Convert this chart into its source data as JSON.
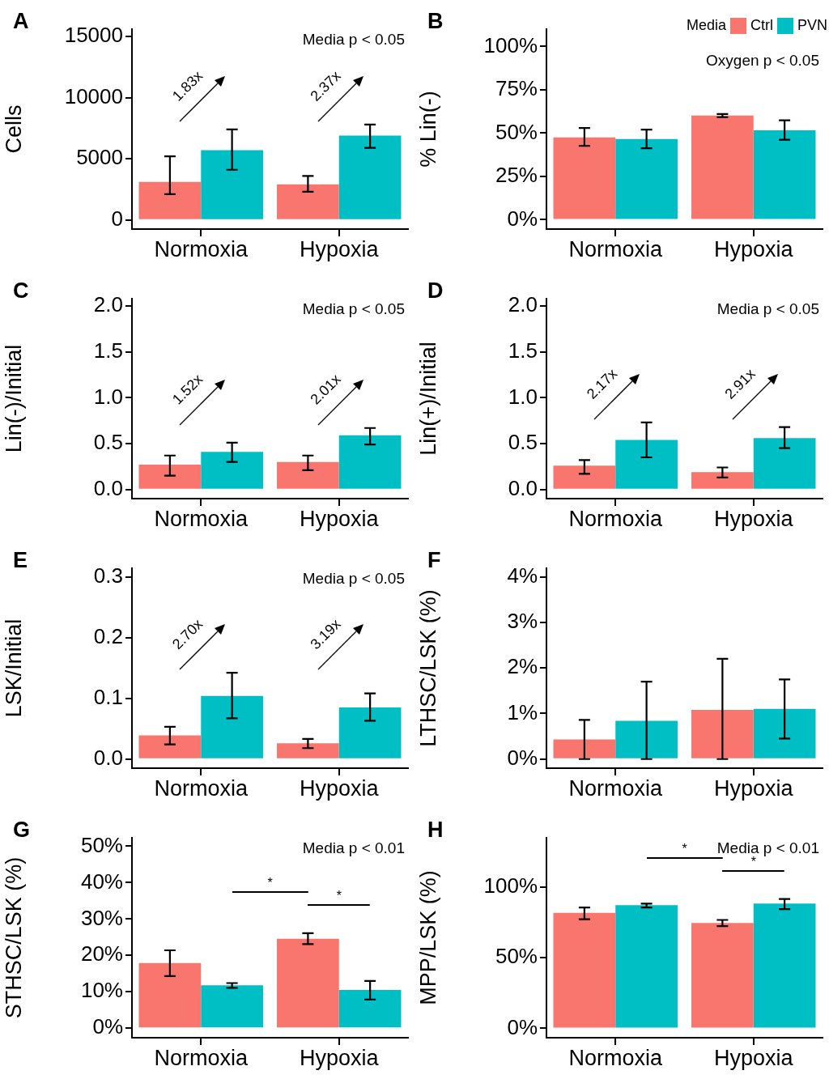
{
  "chart_data": [
    {
      "type": "bar",
      "title": "A",
      "ylabel": "Cells",
      "categories": [
        "Normoxia",
        "Hypoxia"
      ],
      "series": [
        {
          "color": "#f8766d",
          "values": [
            3100,
            2900
          ],
          "errors": [
            [
              2100,
              5200
            ],
            [
              2300,
              3600
            ]
          ]
        },
        {
          "color": "#00bfc4",
          "values": [
            5700,
            6900
          ],
          "errors": [
            [
              4100,
              7400
            ],
            [
              5900,
              7800
            ]
          ]
        }
      ],
      "ylim": [
        -750,
        15600
      ],
      "yticks": [
        0,
        5000,
        10000,
        15000
      ],
      "annotations": [
        "Media p < 0.05",
        "1.83x",
        "2.37x"
      ]
    },
    {
      "type": "bar",
      "title": "B",
      "ylabel": "% Lin(-)",
      "categories": [
        "Normoxia",
        "Hypoxia"
      ],
      "legend": "top right",
      "legend_title": "Media",
      "series": [
        {
          "name": "Ctrl",
          "color": "#f8766d",
          "values": [
            47.5,
            60.1
          ],
          "errors": [
            [
              42.6,
              52.9
            ],
            [
              59.2,
              61
            ]
          ]
        },
        {
          "name": "PVN",
          "color": "#00bfc4",
          "values": [
            46.6,
            51.6
          ],
          "errors": [
            [
              41.3,
              52
            ],
            [
              46.2,
              57.4
            ]
          ]
        }
      ],
      "ylim": [
        -5.4,
        110
      ],
      "yticks": [
        {
          "value": 0,
          "label": "0%"
        },
        {
          "value": 25,
          "label": "25%"
        },
        {
          "value": 50,
          "label": "50%"
        },
        {
          "value": 75,
          "label": "75%"
        },
        {
          "value": 100,
          "label": "100%"
        }
      ],
      "annotations": [
        "Oxygen p < 0.05"
      ]
    },
    {
      "type": "bar",
      "title": "C",
      "ylabel": "Lin(-)/Initial",
      "categories": [
        "Normoxia",
        "Hypoxia"
      ],
      "series": [
        {
          "color": "#f8766d",
          "values": [
            0.27,
            0.3
          ],
          "errors": [
            [
              0.15,
              0.37
            ],
            [
              0.21,
              0.37
            ]
          ]
        },
        {
          "color": "#00bfc4",
          "values": [
            0.41,
            0.59
          ],
          "errors": [
            [
              0.3,
              0.51
            ],
            [
              0.49,
              0.67
            ]
          ]
        }
      ],
      "ylim": [
        -0.1,
        2.08
      ],
      "yticks": [
        {
          "value": 0,
          "label": "0.0"
        },
        {
          "value": 0.5,
          "label": "0.5"
        },
        {
          "value": 1,
          "label": "1.0"
        },
        {
          "value": 1.5,
          "label": "1.5"
        },
        {
          "value": 2,
          "label": "2.0"
        }
      ],
      "annotations": [
        "Media p < 0.05",
        "1.52x",
        "2.01x"
      ]
    },
    {
      "type": "bar",
      "title": "D",
      "ylabel": "Lin(+)/Initial",
      "categories": [
        "Normoxia",
        "Hypoxia"
      ],
      "series": [
        {
          "color": "#f8766d",
          "values": [
            0.26,
            0.19
          ],
          "errors": [
            [
              0.17,
              0.32
            ],
            [
              0.13,
              0.24
            ]
          ]
        },
        {
          "color": "#00bfc4",
          "values": [
            0.54,
            0.56
          ],
          "errors": [
            [
              0.35,
              0.73
            ],
            [
              0.45,
              0.68
            ]
          ]
        }
      ],
      "ylim": [
        -0.1,
        2.08
      ],
      "yticks": [
        {
          "value": 0,
          "label": "0.0"
        },
        {
          "value": 0.5,
          "label": "0.5"
        },
        {
          "value": 1,
          "label": "1.0"
        },
        {
          "value": 1.5,
          "label": "1.5"
        },
        {
          "value": 2,
          "label": "2.0"
        }
      ],
      "annotations": [
        "Media p < 0.05",
        "2.17x",
        "2.91x"
      ]
    },
    {
      "type": "bar",
      "title": "E",
      "ylabel": "LSK/Initial",
      "categories": [
        "Normoxia",
        "Hypoxia"
      ],
      "series": [
        {
          "color": "#f8766d",
          "values": [
            0.039,
            0.026
          ],
          "errors": [
            [
              0.024,
              0.053
            ],
            [
              0.018,
              0.033
            ]
          ]
        },
        {
          "color": "#00bfc4",
          "values": [
            0.104,
            0.085
          ],
          "errors": [
            [
              0.067,
              0.142
            ],
            [
              0.063,
              0.108
            ]
          ]
        }
      ],
      "ylim": [
        -0.015,
        0.314
      ],
      "yticks": [
        {
          "value": 0,
          "label": "0.0"
        },
        {
          "value": 0.1,
          "label": "0.1"
        },
        {
          "value": 0.2,
          "label": "0.2"
        },
        {
          "value": 0.3,
          "label": "0.3"
        }
      ],
      "annotations": [
        "Media p < 0.05",
        "2.70x",
        "3.19x"
      ]
    },
    {
      "type": "bar",
      "title": "F",
      "ylabel": "LTHSC/LSK (%)",
      "categories": [
        "Normoxia",
        "Hypoxia"
      ],
      "series": [
        {
          "color": "#f8766d",
          "values": [
            0.43,
            1.08
          ],
          "errors": [
            [
              0,
              0.86
            ],
            [
              0,
              2.2
            ]
          ]
        },
        {
          "color": "#00bfc4",
          "values": [
            0.84,
            1.1
          ],
          "errors": [
            [
              0,
              1.7
            ],
            [
              0.45,
              1.75
            ]
          ]
        }
      ],
      "ylim": [
        -0.2,
        4.19
      ],
      "yticks": [
        {
          "value": 0,
          "label": "0%"
        },
        {
          "value": 1,
          "label": "1%"
        },
        {
          "value": 2,
          "label": "2%"
        },
        {
          "value": 3,
          "label": "3%"
        },
        {
          "value": 4,
          "label": "4%"
        }
      ]
    },
    {
      "type": "bar",
      "title": "G",
      "ylabel": "STHSC/LSK (%)",
      "categories": [
        "Normoxia",
        "Hypoxia"
      ],
      "series": [
        {
          "color": "#f8766d",
          "values": [
            17.9,
            24.6
          ],
          "errors": [
            [
              14.3,
              21.4
            ],
            [
              23.1,
              26.1
            ]
          ]
        },
        {
          "color": "#00bfc4",
          "values": [
            11.8,
            10.5
          ],
          "errors": [
            [
              11.1,
              12.4
            ],
            [
              7.9,
              13
            ]
          ]
        }
      ],
      "ylim": [
        -2.6,
        52.3
      ],
      "yticks": [
        {
          "value": 0,
          "label": "0%"
        },
        {
          "value": 10,
          "label": "10%"
        },
        {
          "value": 20,
          "label": "20%"
        },
        {
          "value": 30,
          "label": "30%"
        },
        {
          "value": 40,
          "label": "40%"
        },
        {
          "value": 50,
          "label": "50%"
        }
      ],
      "annotations": [
        "Media p < 0.01",
        "*",
        "*"
      ]
    },
    {
      "type": "bar",
      "title": "H",
      "ylabel": "MPP/LSK (%)",
      "categories": [
        "Normoxia",
        "Hypoxia"
      ],
      "series": [
        {
          "color": "#f8766d",
          "values": [
            81.8,
            74.6
          ],
          "errors": [
            [
              77.3,
              85.6
            ],
            [
              72.4,
              76.8
            ]
          ]
        },
        {
          "color": "#00bfc4",
          "values": [
            87.3,
            88.4
          ],
          "errors": [
            [
              85.6,
              88.4
            ],
            [
              84.5,
              91.7
            ]
          ]
        }
      ],
      "ylim": [
        -6.6,
        135
      ],
      "yticks": [
        {
          "value": 0,
          "label": "0%"
        },
        {
          "value": 50,
          "label": "50%"
        },
        {
          "value": 100,
          "label": "100%"
        }
      ],
      "annotations": [
        "Media p < 0.01",
        "*",
        "*"
      ]
    }
  ]
}
